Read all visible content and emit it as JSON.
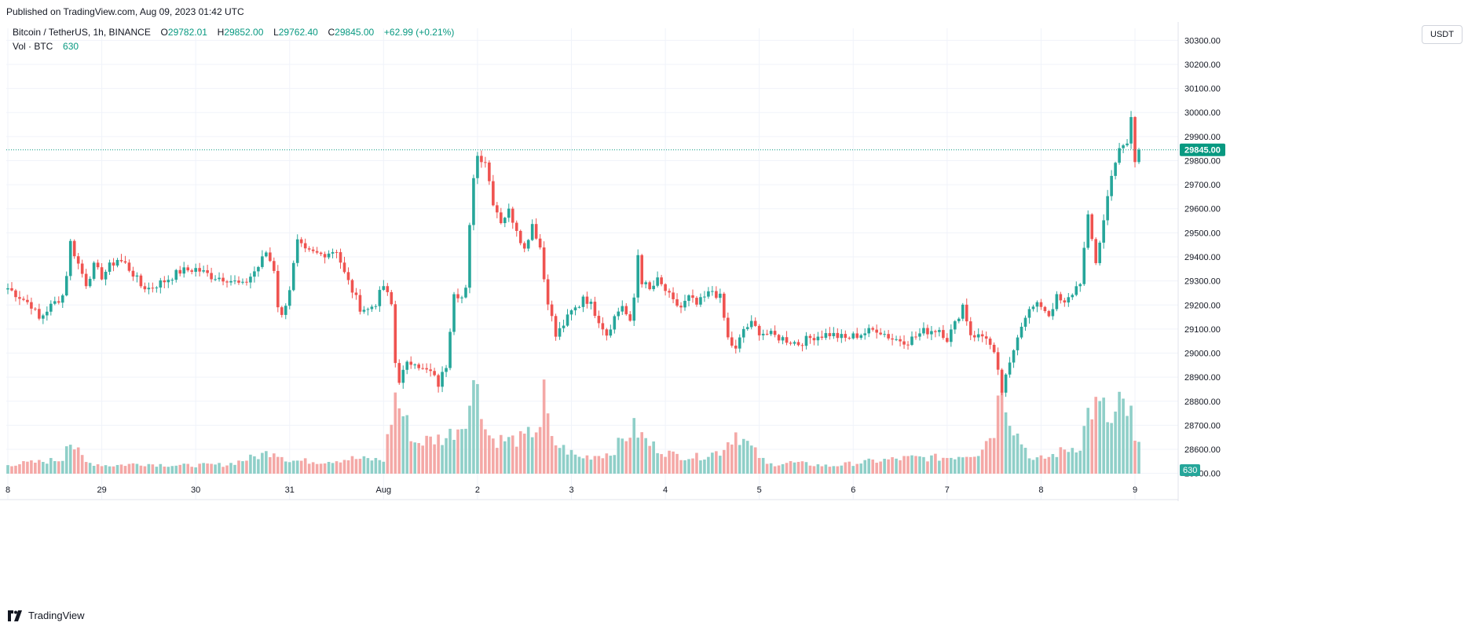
{
  "header": {
    "published": "Published on TradingView.com, Aug 09, 2023 01:42 UTC"
  },
  "legend": {
    "symbol": "Bitcoin / TetherUS, 1h, BINANCE",
    "o_label": "O",
    "o_value": "29782.01",
    "h_label": "H",
    "h_value": "29852.00",
    "l_label": "L",
    "l_value": "29762.40",
    "c_label": "C",
    "c_value": "29845.00",
    "change": "+62.99 (+0.21%)",
    "vol_label": "Vol · BTC",
    "vol_value": "630"
  },
  "currency_button": "USDT",
  "footer": {
    "brand": "TradingView"
  },
  "colors": {
    "up": "#26a69a",
    "down": "#ef5350",
    "up_vol": "#8fcfc8",
    "down_vol": "#f4a8a6",
    "last_price": "#089981"
  },
  "chart_data": {
    "type": "candlestick",
    "y_ticks": [
      "30300.00",
      "30200.00",
      "30100.00",
      "30000.00",
      "29900.00",
      "29800.00",
      "29700.00",
      "29600.00",
      "29500.00",
      "29400.00",
      "29300.00",
      "29200.00",
      "29100.00",
      "29000.00",
      "28900.00",
      "28800.00",
      "28700.00",
      "28600.00",
      "28500.00"
    ],
    "x_ticks": [
      {
        "label": "8",
        "bar": 0
      },
      {
        "label": "29",
        "bar": 24
      },
      {
        "label": "30",
        "bar": 48
      },
      {
        "label": "31",
        "bar": 72
      },
      {
        "label": "Aug",
        "bar": 96
      },
      {
        "label": "2",
        "bar": 120
      },
      {
        "label": "3",
        "bar": 144
      },
      {
        "label": "4",
        "bar": 168
      },
      {
        "label": "5",
        "bar": 192
      },
      {
        "label": "6",
        "bar": 216
      },
      {
        "label": "7",
        "bar": 240
      },
      {
        "label": "8",
        "bar": 264
      },
      {
        "label": "9",
        "bar": 288
      }
    ],
    "ylim": [
      28450,
      30350
    ],
    "last_price": 29845.0,
    "last_price_label": "29845.00",
    "last_volume_label": "630",
    "bars_total": 290,
    "close_anchors": [
      [
        0,
        29270
      ],
      [
        6,
        29200
      ],
      [
        8,
        29140
      ],
      [
        10,
        29180
      ],
      [
        14,
        29240
      ],
      [
        15,
        29330
      ],
      [
        16,
        29460
      ],
      [
        18,
        29370
      ],
      [
        20,
        29290
      ],
      [
        22,
        29360
      ],
      [
        24,
        29320
      ],
      [
        26,
        29360
      ],
      [
        28,
        29390
      ],
      [
        30,
        29370
      ],
      [
        32,
        29330
      ],
      [
        34,
        29280
      ],
      [
        36,
        29270
      ],
      [
        40,
        29300
      ],
      [
        44,
        29340
      ],
      [
        48,
        29350
      ],
      [
        52,
        29320
      ],
      [
        56,
        29310
      ],
      [
        60,
        29280
      ],
      [
        64,
        29360
      ],
      [
        66,
        29420
      ],
      [
        68,
        29350
      ],
      [
        69,
        29200
      ],
      [
        70,
        29150
      ],
      [
        72,
        29270
      ],
      [
        74,
        29460
      ],
      [
        76,
        29420
      ],
      [
        80,
        29410
      ],
      [
        84,
        29430
      ],
      [
        86,
        29330
      ],
      [
        88,
        29260
      ],
      [
        90,
        29190
      ],
      [
        92,
        29180
      ],
      [
        94,
        29210
      ],
      [
        96,
        29280
      ],
      [
        98,
        29200
      ],
      [
        99,
        28960
      ],
      [
        100,
        28890
      ],
      [
        102,
        28950
      ],
      [
        104,
        28970
      ],
      [
        106,
        28930
      ],
      [
        108,
        28920
      ],
      [
        110,
        28870
      ],
      [
        112,
        28950
      ],
      [
        114,
        29260
      ],
      [
        116,
        29230
      ],
      [
        117,
        29260
      ],
      [
        118,
        29520
      ],
      [
        119,
        29740
      ],
      [
        120,
        29820
      ],
      [
        122,
        29800
      ],
      [
        124,
        29630
      ],
      [
        126,
        29550
      ],
      [
        128,
        29590
      ],
      [
        130,
        29520
      ],
      [
        132,
        29430
      ],
      [
        134,
        29540
      ],
      [
        136,
        29440
      ],
      [
        137,
        29310
      ],
      [
        138,
        29220
      ],
      [
        140,
        29070
      ],
      [
        142,
        29120
      ],
      [
        144,
        29170
      ],
      [
        146,
        29200
      ],
      [
        147,
        29240
      ],
      [
        149,
        29200
      ],
      [
        151,
        29140
      ],
      [
        153,
        29080
      ],
      [
        155,
        29150
      ],
      [
        157,
        29200
      ],
      [
        159,
        29120
      ],
      [
        160,
        29230
      ],
      [
        161,
        29410
      ],
      [
        162,
        29300
      ],
      [
        164,
        29260
      ],
      [
        166,
        29300
      ],
      [
        168,
        29260
      ],
      [
        170,
        29210
      ],
      [
        172,
        29190
      ],
      [
        174,
        29230
      ],
      [
        176,
        29200
      ],
      [
        178,
        29230
      ],
      [
        180,
        29260
      ],
      [
        182,
        29230
      ],
      [
        184,
        29060
      ],
      [
        186,
        29010
      ],
      [
        188,
        29100
      ],
      [
        190,
        29120
      ],
      [
        192,
        29090
      ],
      [
        194,
        29080
      ],
      [
        198,
        29060
      ],
      [
        202,
        29040
      ],
      [
        206,
        29070
      ],
      [
        210,
        29080
      ],
      [
        214,
        29060
      ],
      [
        218,
        29080
      ],
      [
        222,
        29100
      ],
      [
        226,
        29060
      ],
      [
        230,
        29050
      ],
      [
        234,
        29090
      ],
      [
        238,
        29100
      ],
      [
        240,
        29060
      ],
      [
        242,
        29120
      ],
      [
        244,
        29200
      ],
      [
        246,
        29080
      ],
      [
        248,
        29070
      ],
      [
        250,
        29070
      ],
      [
        252,
        28990
      ],
      [
        254,
        28840
      ],
      [
        256,
        28950
      ],
      [
        258,
        29080
      ],
      [
        260,
        29160
      ],
      [
        262,
        29190
      ],
      [
        264,
        29200
      ],
      [
        266,
        29160
      ],
      [
        268,
        29230
      ],
      [
        270,
        29200
      ],
      [
        272,
        29250
      ],
      [
        274,
        29300
      ],
      [
        276,
        29560
      ],
      [
        278,
        29380
      ],
      [
        280,
        29550
      ],
      [
        282,
        29750
      ],
      [
        284,
        29840
      ],
      [
        286,
        29870
      ],
      [
        287,
        29980
      ],
      [
        288,
        29790
      ],
      [
        289,
        29845
      ]
    ],
    "volume_anchors": [
      [
        0,
        180
      ],
      [
        8,
        230
      ],
      [
        14,
        290
      ],
      [
        15,
        700
      ],
      [
        16,
        620
      ],
      [
        20,
        220
      ],
      [
        26,
        160
      ],
      [
        34,
        200
      ],
      [
        44,
        160
      ],
      [
        56,
        180
      ],
      [
        64,
        350
      ],
      [
        68,
        460
      ],
      [
        72,
        260
      ],
      [
        80,
        240
      ],
      [
        88,
        300
      ],
      [
        96,
        270
      ],
      [
        99,
        1520
      ],
      [
        104,
        620
      ],
      [
        112,
        720
      ],
      [
        116,
        990
      ],
      [
        118,
        1380
      ],
      [
        120,
        1950
      ],
      [
        122,
        880
      ],
      [
        124,
        680
      ],
      [
        128,
        660
      ],
      [
        132,
        690
      ],
      [
        136,
        980
      ],
      [
        137,
        1550
      ],
      [
        139,
        630
      ],
      [
        146,
        320
      ],
      [
        150,
        360
      ],
      [
        154,
        410
      ],
      [
        160,
        900
      ],
      [
        164,
        580
      ],
      [
        170,
        370
      ],
      [
        176,
        330
      ],
      [
        182,
        440
      ],
      [
        186,
        820
      ],
      [
        189,
        590
      ],
      [
        194,
        180
      ],
      [
        200,
        220
      ],
      [
        210,
        150
      ],
      [
        220,
        240
      ],
      [
        230,
        310
      ],
      [
        240,
        320
      ],
      [
        248,
        420
      ],
      [
        252,
        880
      ],
      [
        254,
        1950
      ],
      [
        256,
        1140
      ],
      [
        258,
        760
      ],
      [
        262,
        260
      ],
      [
        266,
        330
      ],
      [
        270,
        470
      ],
      [
        274,
        560
      ],
      [
        276,
        1210
      ],
      [
        278,
        1330
      ],
      [
        280,
        1270
      ],
      [
        282,
        930
      ],
      [
        284,
        1440
      ],
      [
        286,
        1030
      ],
      [
        287,
        1420
      ],
      [
        288,
        550
      ],
      [
        289,
        630
      ]
    ],
    "vol_max": 2100
  }
}
